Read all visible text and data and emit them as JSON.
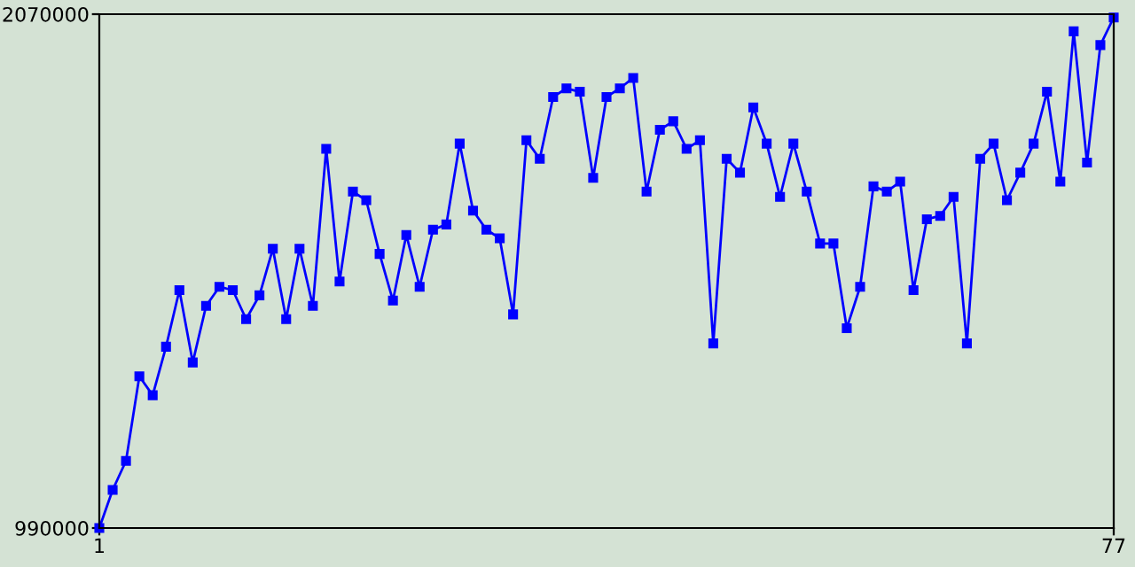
{
  "chart_data": {
    "type": "line",
    "x": [
      1,
      2,
      3,
      4,
      5,
      6,
      7,
      8,
      9,
      10,
      11,
      12,
      13,
      14,
      15,
      16,
      17,
      18,
      19,
      20,
      21,
      22,
      23,
      24,
      25,
      26,
      27,
      28,
      29,
      30,
      31,
      32,
      33,
      34,
      35,
      36,
      37,
      38,
      39,
      40,
      41,
      42,
      43,
      44,
      45,
      46,
      47,
      48,
      49,
      50,
      51,
      52,
      53,
      54,
      55,
      56,
      57,
      58,
      59,
      60,
      61,
      62,
      63,
      64,
      65,
      66,
      67,
      68,
      69,
      70,
      71,
      72,
      73,
      74,
      75,
      76,
      77
    ],
    "series": [
      {
        "color": "#0000ff",
        "values": [
          990000,
          1070000,
          1131000,
          1309000,
          1269000,
          1371000,
          1490000,
          1338000,
          1457000,
          1497000,
          1490000,
          1429000,
          1479000,
          1577000,
          1429000,
          1577000,
          1457000,
          1787000,
          1508000,
          1697000,
          1679000,
          1566000,
          1468000,
          1606000,
          1497000,
          1617000,
          1628000,
          1798000,
          1657000,
          1617000,
          1599000,
          1439000,
          1805000,
          1766000,
          1896000,
          1914000,
          1907000,
          1726000,
          1896000,
          1914000,
          1936000,
          1697000,
          1827000,
          1845000,
          1787000,
          1805000,
          1378000,
          1766000,
          1737000,
          1874000,
          1798000,
          1686000,
          1798000,
          1697000,
          1588000,
          1588000,
          1410000,
          1497000,
          1708000,
          1697000,
          1718000,
          1490000,
          1639000,
          1646000,
          1686000,
          1378000,
          1766000,
          1798000,
          1679000,
          1737000,
          1798000,
          1907000,
          1718000,
          2034000,
          1758000,
          2005000,
          2063000
        ]
      }
    ],
    "xlim": [
      1,
      77
    ],
    "ylim": [
      990000,
      2070000
    ],
    "xticks": [
      1,
      77
    ],
    "yticks": [
      990000,
      2070000
    ],
    "marker": "square",
    "line_style": "solid",
    "grid": false,
    "legend": false
  }
}
